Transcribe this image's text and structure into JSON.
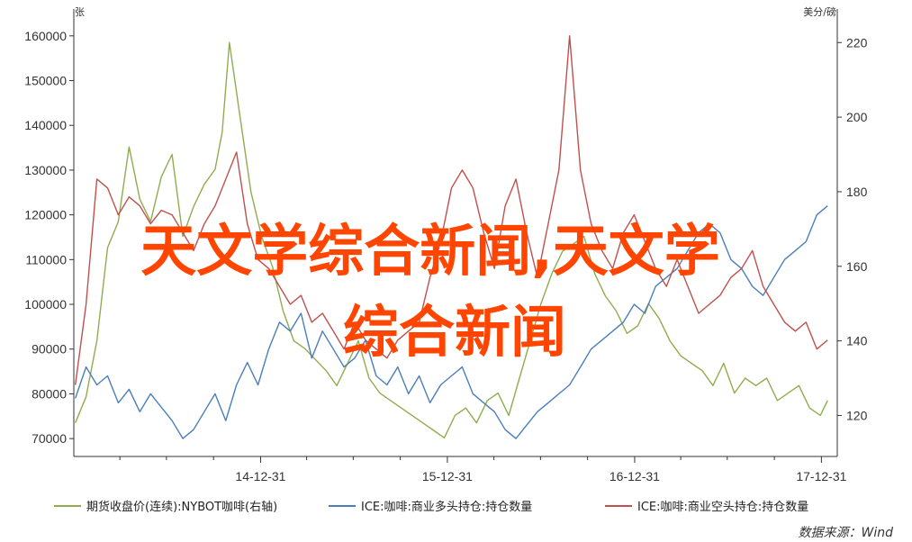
{
  "chart_data": {
    "type": "line",
    "y_left_unit": "张",
    "y_right_unit": "美分/磅",
    "y_left_ticks": [
      "70000",
      "80000",
      "90000",
      "100000",
      "110000",
      "120000",
      "130000",
      "140000",
      "150000",
      "160000"
    ],
    "y_right_ticks": [
      "120",
      "140",
      "160",
      "180",
      "200",
      "220"
    ],
    "x_ticks": [
      "14-12-31",
      "15-12-31",
      "16-12-31",
      "17-12-31"
    ],
    "ylim_left": [
      66000,
      166000
    ],
    "ylim_right": [
      109,
      229
    ],
    "xlim": [
      "2013-12-31",
      "2018-01-31"
    ],
    "grid": false,
    "legend_position": "bottom",
    "series": [
      {
        "name": "期货收盘价(连续):NYBOT咖啡(右轴)",
        "axis": "right",
        "color": "#8fad4e",
        "x": [
          "2014-01-03",
          "2014-01-24",
          "2014-02-14",
          "2014-03-07",
          "2014-03-28",
          "2014-04-18",
          "2014-05-09",
          "2014-05-30",
          "2014-06-20",
          "2014-07-11",
          "2014-08-01",
          "2014-08-22",
          "2014-09-12",
          "2014-10-03",
          "2014-10-17",
          "2014-10-31",
          "2014-11-21",
          "2014-12-12",
          "2015-01-02",
          "2015-01-23",
          "2015-02-13",
          "2015-03-06",
          "2015-03-27",
          "2015-04-17",
          "2015-05-08",
          "2015-05-29",
          "2015-06-19",
          "2015-07-10",
          "2015-07-31",
          "2015-08-21",
          "2015-09-11",
          "2015-10-02",
          "2015-10-23",
          "2015-11-13",
          "2015-12-04",
          "2015-12-25",
          "2016-01-15",
          "2016-02-05",
          "2016-02-26",
          "2016-03-18",
          "2016-04-08",
          "2016-04-29",
          "2016-05-20",
          "2016-06-10",
          "2016-07-01",
          "2016-07-22",
          "2016-08-12",
          "2016-09-02",
          "2016-09-23",
          "2016-10-14",
          "2016-11-04",
          "2016-11-25",
          "2016-12-16",
          "2017-01-06",
          "2017-01-27",
          "2017-02-17",
          "2017-03-10",
          "2017-03-31",
          "2017-04-21",
          "2017-05-12",
          "2017-06-02",
          "2017-06-23",
          "2017-07-14",
          "2017-08-04",
          "2017-08-25",
          "2017-09-15",
          "2017-10-06",
          "2017-10-27",
          "2017-11-17",
          "2017-12-08",
          "2017-12-29",
          "2018-01-12"
        ],
        "values": [
          118,
          125,
          140,
          165,
          172,
          192,
          178,
          172,
          184,
          190,
          168,
          176,
          182,
          186,
          196,
          220,
          200,
          180,
          168,
          160,
          148,
          140,
          138,
          135,
          132,
          128,
          134,
          140,
          130,
          126,
          124,
          122,
          120,
          118,
          116,
          114,
          120,
          122,
          118,
          124,
          126,
          120,
          130,
          140,
          150,
          158,
          164,
          166,
          168,
          158,
          152,
          148,
          142,
          144,
          150,
          146,
          140,
          136,
          134,
          132,
          128,
          134,
          126,
          130,
          128,
          130,
          124,
          126,
          128,
          122,
          120,
          124
        ]
      },
      {
        "name": "ICE:咖啡:商业多头持仓:持仓数量",
        "axis": "left",
        "color": "#4a7ebb",
        "x": [
          "2014-01-03",
          "2014-01-24",
          "2014-02-14",
          "2014-03-07",
          "2014-03-28",
          "2014-04-18",
          "2014-05-09",
          "2014-05-30",
          "2014-06-20",
          "2014-07-11",
          "2014-08-01",
          "2014-08-22",
          "2014-09-12",
          "2014-10-03",
          "2014-10-24",
          "2014-11-14",
          "2014-12-05",
          "2014-12-26",
          "2015-01-16",
          "2015-02-06",
          "2015-02-27",
          "2015-03-20",
          "2015-04-10",
          "2015-05-01",
          "2015-05-22",
          "2015-06-12",
          "2015-07-03",
          "2015-07-24",
          "2015-08-14",
          "2015-09-04",
          "2015-09-25",
          "2015-10-16",
          "2015-11-06",
          "2015-11-27",
          "2015-12-18",
          "2016-01-08",
          "2016-01-29",
          "2016-02-19",
          "2016-03-11",
          "2016-04-01",
          "2016-04-22",
          "2016-05-13",
          "2016-06-03",
          "2016-06-24",
          "2016-07-15",
          "2016-08-05",
          "2016-08-26",
          "2016-09-16",
          "2016-10-07",
          "2016-10-28",
          "2016-11-18",
          "2016-12-09",
          "2016-12-30",
          "2017-01-20",
          "2017-02-10",
          "2017-03-03",
          "2017-03-24",
          "2017-04-14",
          "2017-05-05",
          "2017-05-26",
          "2017-06-16",
          "2017-07-07",
          "2017-07-28",
          "2017-08-18",
          "2017-09-08",
          "2017-09-29",
          "2017-10-20",
          "2017-11-10",
          "2017-12-01",
          "2017-12-22",
          "2018-01-12"
        ],
        "values": [
          79000,
          86000,
          82000,
          84000,
          78000,
          81000,
          76000,
          80000,
          77000,
          74000,
          70000,
          72000,
          76000,
          80000,
          74000,
          82000,
          87000,
          82000,
          90000,
          96000,
          94000,
          98000,
          88000,
          94000,
          90000,
          86000,
          88000,
          92000,
          84000,
          82000,
          86000,
          80000,
          84000,
          78000,
          82000,
          84000,
          86000,
          80000,
          78000,
          76000,
          72000,
          70000,
          73000,
          76000,
          78000,
          80000,
          82000,
          86000,
          90000,
          92000,
          94000,
          96000,
          100000,
          98000,
          104000,
          106000,
          108000,
          112000,
          116000,
          118000,
          116000,
          110000,
          108000,
          104000,
          102000,
          106000,
          110000,
          112000,
          114000,
          120000,
          122000
        ]
      },
      {
        "name": "ICE:咖啡:商业空头持仓:持仓数量",
        "axis": "left",
        "color": "#c0504d",
        "x": [
          "2014-01-03",
          "2014-01-24",
          "2014-02-14",
          "2014-03-07",
          "2014-03-28",
          "2014-04-18",
          "2014-05-09",
          "2014-05-30",
          "2014-06-20",
          "2014-07-11",
          "2014-08-01",
          "2014-08-22",
          "2014-09-12",
          "2014-10-03",
          "2014-10-24",
          "2014-11-14",
          "2014-12-05",
          "2014-12-26",
          "2015-01-16",
          "2015-02-06",
          "2015-02-27",
          "2015-03-20",
          "2015-04-10",
          "2015-05-01",
          "2015-05-22",
          "2015-06-12",
          "2015-07-03",
          "2015-07-24",
          "2015-08-14",
          "2015-09-04",
          "2015-09-25",
          "2015-10-16",
          "2015-11-06",
          "2015-11-27",
          "2015-12-18",
          "2016-01-08",
          "2016-01-29",
          "2016-02-19",
          "2016-03-11",
          "2016-04-01",
          "2016-04-22",
          "2016-05-13",
          "2016-06-03",
          "2016-06-24",
          "2016-07-15",
          "2016-08-05",
          "2016-08-26",
          "2016-09-16",
          "2016-10-07",
          "2016-10-28",
          "2016-11-18",
          "2016-12-09",
          "2016-12-30",
          "2017-01-20",
          "2017-02-10",
          "2017-03-03",
          "2017-03-24",
          "2017-04-14",
          "2017-05-05",
          "2017-05-26",
          "2017-06-16",
          "2017-07-07",
          "2017-07-28",
          "2017-08-18",
          "2017-09-08",
          "2017-09-29",
          "2017-10-20",
          "2017-11-10",
          "2017-12-01",
          "2017-12-22",
          "2018-01-12"
        ],
        "values": [
          82000,
          100000,
          128000,
          126000,
          120000,
          124000,
          122000,
          118000,
          121000,
          120000,
          116000,
          112000,
          118000,
          122000,
          128000,
          134000,
          118000,
          110000,
          108000,
          104000,
          100000,
          102000,
          96000,
          98000,
          94000,
          90000,
          96000,
          92000,
          90000,
          88000,
          92000,
          94000,
          96000,
          106000,
          114000,
          126000,
          130000,
          126000,
          116000,
          108000,
          122000,
          128000,
          116000,
          106000,
          118000,
          130000,
          160000,
          130000,
          118000,
          112000,
          108000,
          116000,
          120000,
          114000,
          108000,
          104000,
          110000,
          104000,
          98000,
          100000,
          102000,
          106000,
          108000,
          112000,
          104000,
          100000,
          96000,
          94000,
          96000,
          90000,
          92000
        ]
      }
    ]
  },
  "overlay": {
    "line1": "天文学综合新闻,天文学",
    "line2": "综合新闻"
  },
  "source": "数据来源：Wind"
}
